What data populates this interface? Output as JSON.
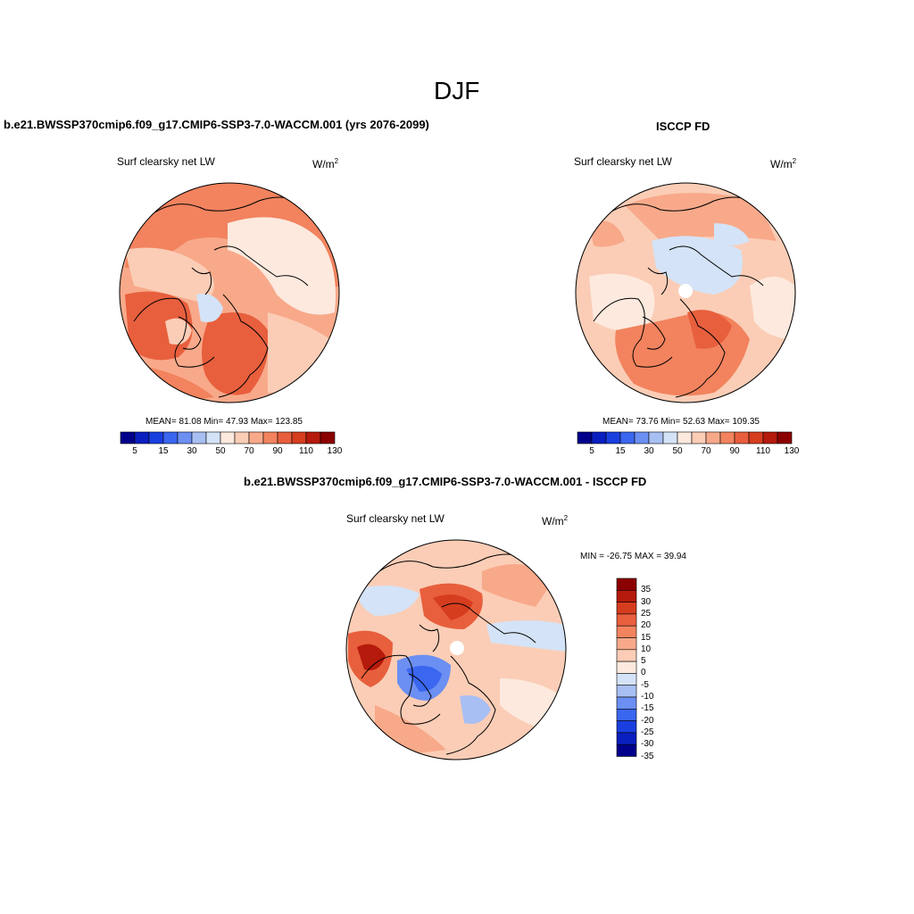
{
  "figure": {
    "title": "DJF"
  },
  "panels": [
    {
      "id": "model",
      "title": "b.e21.BWSSP370cmip6.f09_g17.CMIP6-SSP3-7.0-WACCM.001 (yrs 2076-2099)",
      "variable": "Surf clearsky net LW",
      "units": "W/m",
      "units_sup": "2",
      "stats": "MEAN=  81.08  Min=  47.93  Max= 123.85",
      "colorbar_ticks": [
        "5",
        "15",
        "30",
        "50",
        "70",
        "90",
        "110",
        "130"
      ]
    },
    {
      "id": "obs",
      "title": "ISCCP FD",
      "variable": "Surf clearsky net LW",
      "units": "W/m",
      "units_sup": "2",
      "stats": "MEAN=  73.76  Min=  52.63  Max= 109.35",
      "colorbar_ticks": [
        "5",
        "15",
        "30",
        "50",
        "70",
        "90",
        "110",
        "130"
      ]
    },
    {
      "id": "diff",
      "title": "b.e21.BWSSP370cmip6.f09_g17.CMIP6-SSP3-7.0-WACCM.001 - ISCCP FD",
      "variable": "Surf clearsky net LW",
      "units": "W/m",
      "units_sup": "2",
      "stats": "MIN = -26.75 MAX =  39.94",
      "colorbar_ticks": [
        "35",
        "30",
        "25",
        "20",
        "15",
        "10",
        "5",
        "0",
        "-5",
        "-10",
        "-15",
        "-20",
        "-25",
        "-30",
        "-35"
      ]
    }
  ],
  "colors": {
    "abs_scale": [
      "#00008b",
      "#0a1fbf",
      "#1a3fe0",
      "#3a66f0",
      "#6b8ff2",
      "#a8bff3",
      "#d4e3f7",
      "#fde9de",
      "#fbcdb6",
      "#f8a98a",
      "#f2835e",
      "#e85f3d",
      "#d63d1f",
      "#b51a0c",
      "#8b0000"
    ],
    "diff_scale": [
      "#8b0000",
      "#b51a0c",
      "#d63d1f",
      "#e85f3d",
      "#f2835e",
      "#f8a98a",
      "#fbcdb6",
      "#fde9de",
      "#d4e3f7",
      "#a8bff3",
      "#6b8ff2",
      "#3a66f0",
      "#1a3fe0",
      "#0a1fbf",
      "#00008b"
    ]
  }
}
